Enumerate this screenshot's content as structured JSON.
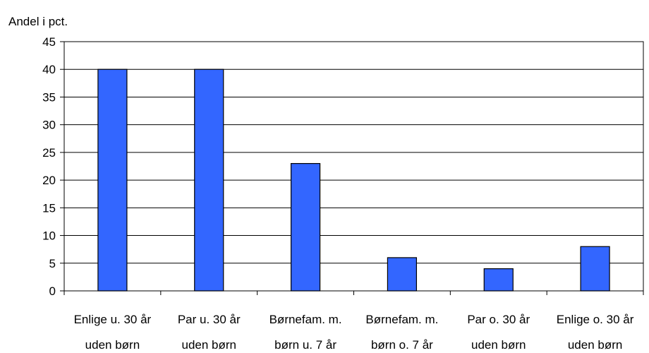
{
  "chart_data": {
    "type": "bar",
    "ylabel": "Andel i pct.",
    "categories": [
      [
        "Enlige u. 30 år",
        "uden børn"
      ],
      [
        "Par u. 30 år",
        "uden børn"
      ],
      [
        "Børnefam. m.",
        "børn u. 7 år"
      ],
      [
        "Børnefam. m.",
        "børn o. 7 år"
      ],
      [
        "Par o. 30 år",
        "uden børn"
      ],
      [
        "Enlige o. 30 år",
        "uden  børn"
      ]
    ],
    "values": [
      40,
      40,
      23,
      6,
      4,
      8
    ],
    "ylim": [
      0,
      45
    ],
    "yticks": [
      0,
      5,
      10,
      15,
      20,
      25,
      30,
      35,
      40,
      45
    ],
    "grid": true,
    "bar_color": "#3366FF"
  }
}
